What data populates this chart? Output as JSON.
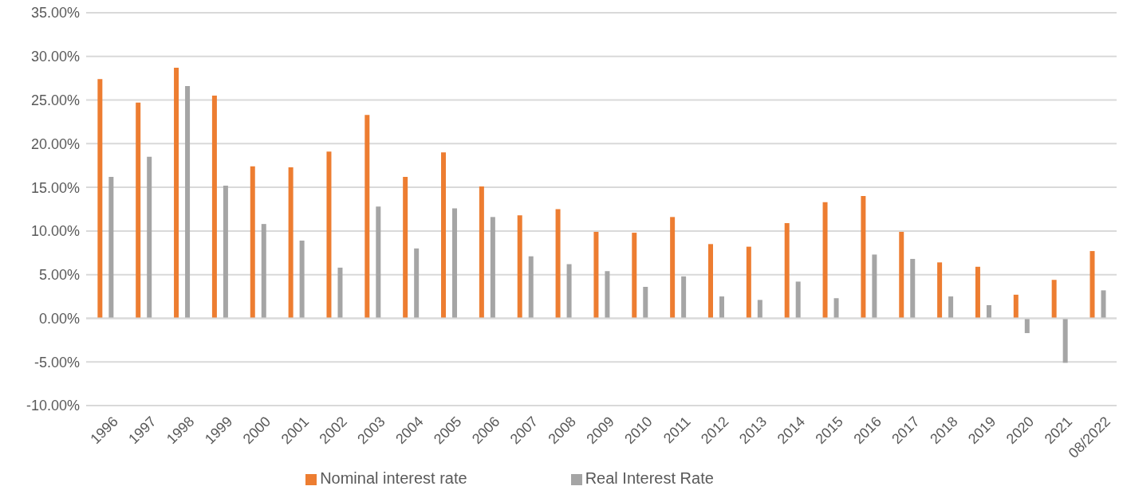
{
  "chart_data": {
    "type": "bar",
    "categories": [
      "1996",
      "1997",
      "1998",
      "1999",
      "2000",
      "2001",
      "2002",
      "2003",
      "2004",
      "2005",
      "2006",
      "2007",
      "2008",
      "2009",
      "2010",
      "2011",
      "2012",
      "2013",
      "2014",
      "2015",
      "2016",
      "2017",
      "2018",
      "2019",
      "2020",
      "2021",
      "08/2022"
    ],
    "series": [
      {
        "name": "Nominal interest rate",
        "color": "#ed7d31",
        "values": [
          27.4,
          24.7,
          28.7,
          25.5,
          17.4,
          17.3,
          19.1,
          23.3,
          16.2,
          19.0,
          15.1,
          11.8,
          12.5,
          9.9,
          9.8,
          11.6,
          8.5,
          8.2,
          10.9,
          13.3,
          14.0,
          9.9,
          6.4,
          5.9,
          2.7,
          4.4,
          7.7
        ]
      },
      {
        "name": "Real Interest Rate",
        "color": "#a5a5a5",
        "values": [
          16.2,
          18.5,
          26.6,
          15.2,
          10.8,
          8.9,
          5.8,
          12.8,
          8.0,
          12.6,
          11.6,
          7.1,
          6.2,
          5.4,
          3.6,
          4.8,
          2.5,
          2.1,
          4.2,
          2.3,
          7.3,
          6.8,
          2.5,
          1.5,
          -1.7,
          -5.1,
          3.2
        ]
      }
    ],
    "ylim": [
      -10,
      35
    ],
    "yticks": [
      {
        "value": -10,
        "label": "-10.00%"
      },
      {
        "value": -5,
        "label": "-5.00%"
      },
      {
        "value": 0,
        "label": "0.00%"
      },
      {
        "value": 5,
        "label": "5.00%"
      },
      {
        "value": 10,
        "label": "10.00%"
      },
      {
        "value": 15,
        "label": "15.00%"
      },
      {
        "value": 20,
        "label": "20.00%"
      },
      {
        "value": 25,
        "label": "25.00%"
      },
      {
        "value": 30,
        "label": "30.00%"
      },
      {
        "value": 35,
        "label": "35.00%"
      }
    ],
    "grid": "y",
    "legend": "bottom"
  }
}
